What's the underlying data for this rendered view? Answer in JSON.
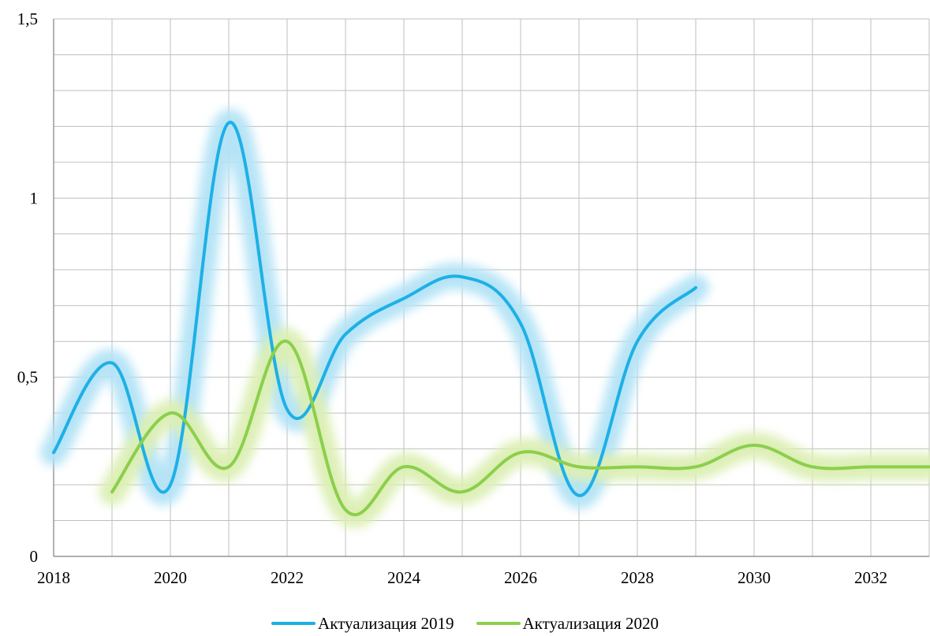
{
  "chart_data": {
    "type": "line",
    "title": "",
    "xlabel": "",
    "ylabel": "",
    "xlim": [
      2018,
      2033
    ],
    "ylim": [
      0,
      1.5
    ],
    "x_ticks": [
      "2018",
      "2020",
      "2022",
      "2024",
      "2026",
      "2028",
      "2030",
      "2032"
    ],
    "y_ticks": [
      "0",
      "0,5",
      "1",
      "1,5"
    ],
    "grid": true,
    "legend_position": "bottom",
    "series": [
      {
        "name": "Актуализация 2019",
        "color": "#1DB0E6",
        "glow_color": "#B3E3F6",
        "x": [
          2018,
          2019,
          2020,
          2021,
          2022,
          2023,
          2024,
          2025,
          2026,
          2027,
          2028,
          2029
        ],
        "y": [
          0.29,
          0.54,
          0.2,
          1.21,
          0.41,
          0.62,
          0.72,
          0.78,
          0.65,
          0.17,
          0.6,
          0.75
        ]
      },
      {
        "name": "Актуализация 2020",
        "color": "#8BCF4B",
        "glow_color": "#DCEFB4",
        "x": [
          2019,
          2020,
          2021,
          2022,
          2023,
          2024,
          2025,
          2026,
          2027,
          2028,
          2029,
          2030,
          2031,
          2032,
          2033
        ],
        "y": [
          0.18,
          0.4,
          0.25,
          0.6,
          0.13,
          0.25,
          0.18,
          0.29,
          0.25,
          0.25,
          0.25,
          0.31,
          0.25,
          0.25,
          0.25
        ]
      }
    ]
  }
}
